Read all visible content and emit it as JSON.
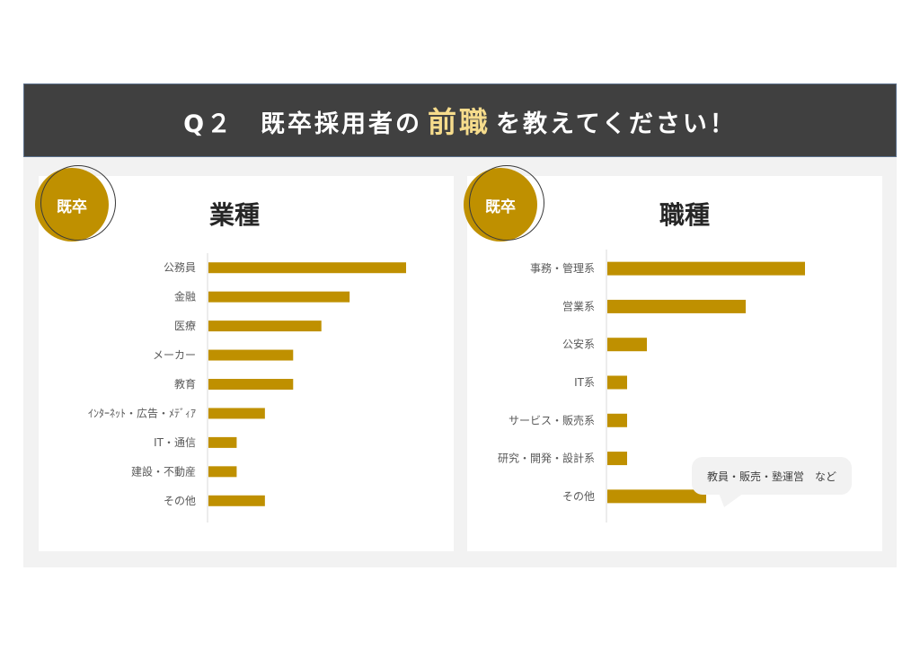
{
  "header": {
    "prefix": "Q２",
    "before": "既卒採用者の",
    "highlight": "前職",
    "after": "を教えてください！"
  },
  "colors": {
    "bar": "#bf9000",
    "header_bg": "#404040",
    "highlight": "#f6dc8c"
  },
  "left_panel": {
    "badge": "既卒",
    "title": "業種"
  },
  "right_panel": {
    "badge": "既卒",
    "title": "職種"
  },
  "callout": {
    "text": "教員・販売・塾運営　など"
  },
  "chart_data": [
    {
      "type": "bar",
      "orientation": "horizontal",
      "title": "業種",
      "categories": [
        "公務員",
        "金融",
        "医療",
        "メーカー",
        "教育",
        "ｲﾝﾀｰﾈｯﾄ・広告・ﾒﾃﾞｨｱ",
        "IT・通信",
        "建設・不動産",
        "その他"
      ],
      "values": [
        14,
        10,
        8,
        6,
        6,
        4,
        2,
        2,
        4
      ],
      "xlim": [
        0,
        14
      ]
    },
    {
      "type": "bar",
      "orientation": "horizontal",
      "title": "職種",
      "categories": [
        "事務・管理系",
        "営業系",
        "公安系",
        "IT系",
        "サービス・販売系",
        "研究・開発・設計系",
        "その他"
      ],
      "values": [
        10,
        7,
        2,
        1,
        1,
        1,
        5
      ],
      "xlim": [
        0,
        10
      ]
    }
  ]
}
